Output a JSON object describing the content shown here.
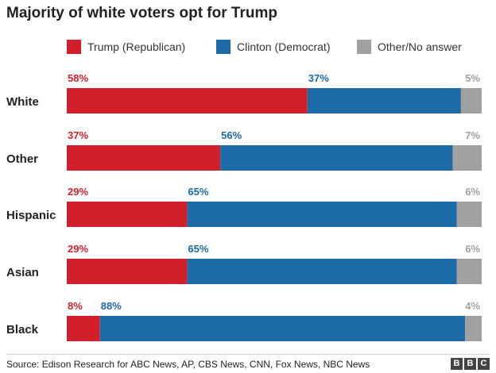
{
  "header": {
    "title": "Majority of white voters opt for Trump"
  },
  "footer": {
    "source": "Source: Edison Research for ABC News, AP, CBS News, CNN, Fox News, NBC News"
  },
  "logo": {
    "letters": [
      "B",
      "B",
      "C"
    ]
  },
  "chart_data": {
    "type": "bar",
    "orientation": "horizontal",
    "stacked": true,
    "normalized_percent": true,
    "title": "Majority of white voters opt for Trump",
    "categories": [
      "White",
      "Other",
      "Hispanic",
      "Asian",
      "Black"
    ],
    "series": [
      {
        "name": "Trump (Republican)",
        "color": "#d2202b",
        "label_color": "#d2202b",
        "values": [
          58,
          37,
          29,
          29,
          8
        ]
      },
      {
        "name": "Clinton (Democrat)",
        "color": "#1c6aa6",
        "label_color": "#1c6aa6",
        "values": [
          37,
          56,
          65,
          65,
          88
        ]
      },
      {
        "name": "Other/No answer",
        "color": "#a0a0a0",
        "label_color": "#a0a0a0",
        "values": [
          5,
          7,
          6,
          6,
          4
        ]
      }
    ],
    "value_labels": [
      [
        "58%",
        "37%",
        "5%"
      ],
      [
        "37%",
        "56%",
        "7%"
      ],
      [
        "29%",
        "65%",
        "6%"
      ],
      [
        "29%",
        "65%",
        "6%"
      ],
      [
        "8%",
        "88%",
        "4%"
      ]
    ],
    "legend_position": "top",
    "grid": false
  }
}
